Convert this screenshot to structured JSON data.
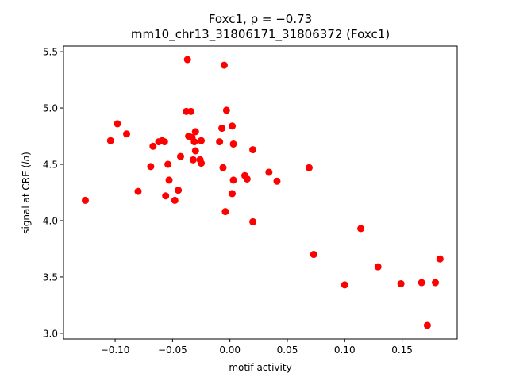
{
  "chart_data": {
    "type": "scatter",
    "title": "Foxc1, ρ = −0.73",
    "subtitle": "mm10_chr13_31806171_31806372 (Foxc1)",
    "xlabel": "motif activity",
    "ylabel_prefix": "signal at CRE (",
    "ylabel_italic": "ln",
    "ylabel_suffix": ")",
    "xlim": [
      -0.145,
      0.198
    ],
    "ylim": [
      2.95,
      5.55
    ],
    "xticks": [
      -0.1,
      -0.05,
      0.0,
      0.05,
      0.1,
      0.15
    ],
    "xtick_labels": [
      "−0.10",
      "−0.05",
      "0.00",
      "0.05",
      "0.10",
      "0.15"
    ],
    "yticks": [
      3.0,
      3.5,
      4.0,
      4.5,
      5.0,
      5.5
    ],
    "ytick_labels": [
      "3.0",
      "3.5",
      "4.0",
      "4.5",
      "5.0",
      "5.5"
    ],
    "grid": false,
    "marker_color": "#ff0000",
    "x": [
      -0.126,
      -0.104,
      -0.098,
      -0.09,
      -0.08,
      -0.069,
      -0.067,
      -0.062,
      -0.059,
      -0.057,
      -0.056,
      -0.054,
      -0.053,
      -0.048,
      -0.045,
      -0.043,
      -0.038,
      -0.037,
      -0.036,
      -0.034,
      -0.033,
      -0.032,
      -0.031,
      -0.03,
      -0.03,
      -0.026,
      -0.025,
      -0.025,
      -0.009,
      -0.007,
      -0.006,
      -0.005,
      -0.004,
      -0.003,
      0.002,
      0.002,
      0.003,
      0.003,
      0.013,
      0.015,
      0.02,
      0.02,
      0.034,
      0.041,
      0.069,
      0.073,
      0.1,
      0.114,
      0.129,
      0.149,
      0.167,
      0.172,
      0.179,
      0.183
    ],
    "y": [
      4.18,
      4.71,
      4.86,
      4.77,
      4.26,
      4.48,
      4.66,
      4.7,
      4.71,
      4.7,
      4.22,
      4.5,
      4.36,
      4.18,
      4.27,
      4.57,
      4.97,
      5.43,
      4.75,
      4.97,
      4.74,
      4.54,
      4.7,
      4.79,
      4.62,
      4.54,
      4.51,
      4.71,
      4.7,
      4.82,
      4.47,
      5.38,
      4.08,
      4.98,
      4.84,
      4.24,
      4.68,
      4.36,
      4.4,
      4.37,
      4.63,
      3.99,
      4.43,
      4.35,
      4.47,
      3.7,
      3.43,
      3.93,
      3.59,
      3.44,
      3.45,
      3.07,
      3.45,
      3.66
    ]
  }
}
